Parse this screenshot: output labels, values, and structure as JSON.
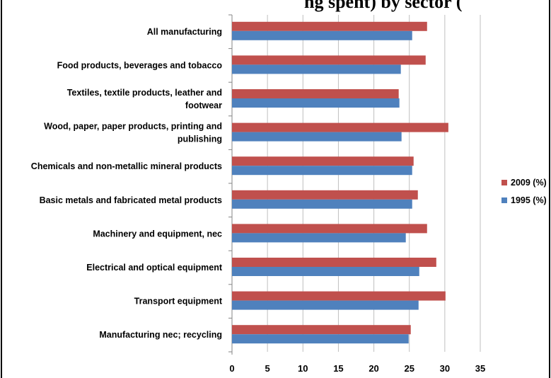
{
  "title_fragment": "ng spent) by sector (",
  "chart_data": {
    "type": "bar",
    "orientation": "horizontal",
    "categories": [
      "All manufacturing",
      "Food products, beverages and tobacco",
      "Textiles, textile products, leather and footwear",
      "Wood, paper, paper products, printing and publishing",
      "Chemicals and non-metallic mineral products",
      "Basic metals and fabricated metal products",
      "Machinery and equipment, nec",
      "Electrical and optical equipment",
      "Transport equipment",
      "Manufacturing nec; recycling"
    ],
    "series": [
      {
        "name": "2009 (%)",
        "color": "#C0504D",
        "values": [
          27.5,
          27.3,
          23.5,
          30.5,
          25.6,
          26.2,
          27.5,
          28.8,
          30.1,
          25.2
        ]
      },
      {
        "name": "1995 (%)",
        "color": "#4F81BD",
        "values": [
          25.4,
          23.8,
          23.6,
          23.9,
          25.4,
          25.4,
          24.5,
          26.4,
          26.3,
          24.9
        ]
      }
    ],
    "xlim": [
      0,
      35
    ],
    "xticks": [
      "0",
      "5",
      "10",
      "15",
      "20",
      "25",
      "30",
      "35"
    ],
    "grid": true,
    "legend_position": "right"
  }
}
